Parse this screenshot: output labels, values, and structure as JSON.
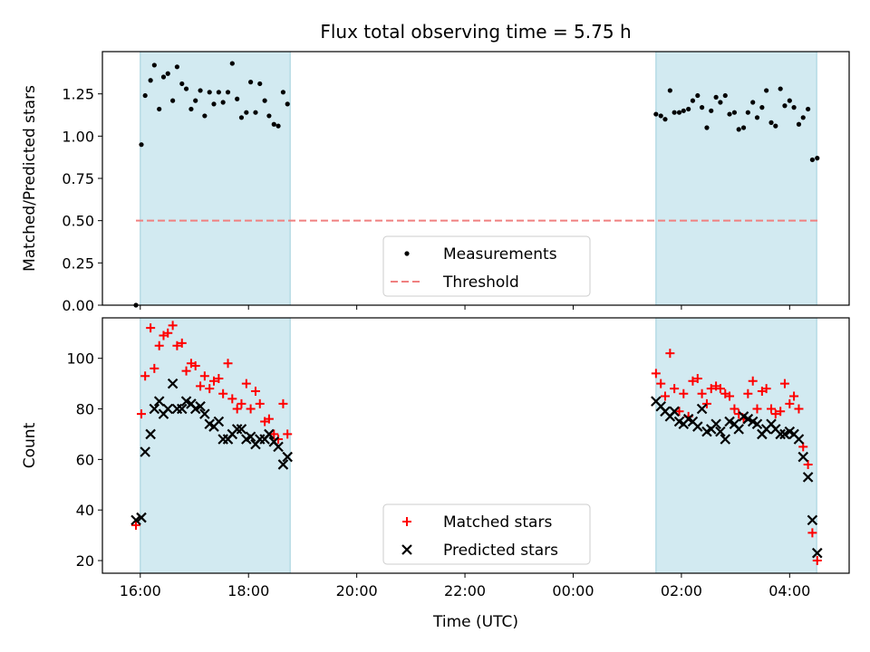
{
  "chart_data": {
    "title": "Flux total observing time = 5.75 h",
    "xlabel": "Time (UTC)",
    "x_unit": "hours since 16:00 UTC",
    "xlim": [
      -0.7,
      13.1
    ],
    "x_ticks": [
      {
        "x": 0,
        "label": "16:00"
      },
      {
        "x": 2,
        "label": "18:00"
      },
      {
        "x": 4,
        "label": "20:00"
      },
      {
        "x": 6,
        "label": "22:00"
      },
      {
        "x": 8,
        "label": "00:00"
      },
      {
        "x": 10,
        "label": "02:00"
      },
      {
        "x": 12,
        "label": "04:00"
      }
    ],
    "shaded_intervals": [
      [
        0.0,
        2.77
      ],
      [
        9.53,
        12.5
      ]
    ],
    "shade_color": "#add8e6",
    "panels": [
      {
        "type": "scatter",
        "ylabel": "Matched/Predicted stars",
        "ylim": [
          0,
          1.5
        ],
        "y_ticks": [
          {
            "y": 0,
            "label": "0.00"
          },
          {
            "y": 0.25,
            "label": "0.25"
          },
          {
            "y": 0.5,
            "label": "0.50"
          },
          {
            "y": 0.75,
            "label": "0.75"
          },
          {
            "y": 1.0,
            "label": "1.00"
          },
          {
            "y": 1.25,
            "label": "1.25"
          }
        ],
        "legend": {
          "location": "lower center",
          "entries": [
            "Measurements",
            "Threshold"
          ]
        },
        "threshold": {
          "name": "Threshold",
          "y": 0.5,
          "x_range": [
            -0.08,
            12.52
          ],
          "color": "#f08080",
          "style": "dashed"
        },
        "series": [
          {
            "name": "Measurements",
            "marker": "dot",
            "color": "#000000",
            "x": [
              -0.08,
              0.02,
              0.09,
              0.19,
              0.26,
              0.35,
              0.43,
              0.51,
              0.6,
              0.68,
              0.77,
              0.85,
              0.94,
              1.02,
              1.11,
              1.19,
              1.28,
              1.36,
              1.45,
              1.53,
              1.62,
              1.7,
              1.79,
              1.87,
              1.96,
              2.04,
              2.13,
              2.21,
              2.3,
              2.38,
              2.47,
              2.55,
              2.64,
              2.72,
              9.53,
              9.62,
              9.7,
              9.79,
              9.87,
              9.96,
              10.04,
              10.13,
              10.21,
              10.3,
              10.38,
              10.47,
              10.55,
              10.64,
              10.72,
              10.81,
              10.89,
              10.98,
              11.06,
              11.15,
              11.23,
              11.32,
              11.4,
              11.49,
              11.57,
              11.66,
              11.74,
              11.83,
              11.91,
              12.0,
              12.08,
              12.17,
              12.25,
              12.34,
              12.42,
              12.51
            ],
            "y": [
              0.0,
              0.95,
              1.24,
              1.33,
              1.42,
              1.16,
              1.35,
              1.37,
              1.21,
              1.41,
              1.31,
              1.28,
              1.16,
              1.21,
              1.27,
              1.12,
              1.26,
              1.19,
              1.26,
              1.2,
              1.26,
              1.43,
              1.22,
              1.11,
              1.14,
              1.32,
              1.14,
              1.31,
              1.21,
              1.12,
              1.07,
              1.06,
              1.26,
              1.19,
              1.13,
              1.12,
              1.1,
              1.27,
              1.14,
              1.14,
              1.15,
              1.16,
              1.21,
              1.24,
              1.17,
              1.05,
              1.15,
              1.23,
              1.2,
              1.24,
              1.13,
              1.14,
              1.04,
              1.05,
              1.14,
              1.2,
              1.11,
              1.17,
              1.27,
              1.08,
              1.06,
              1.28,
              1.18,
              1.21,
              1.17,
              1.07,
              1.11,
              1.16,
              0.86,
              0.87
            ]
          }
        ]
      },
      {
        "type": "scatter",
        "ylabel": "Count",
        "ylim": [
          15,
          116
        ],
        "y_ticks": [
          {
            "y": 20,
            "label": "20"
          },
          {
            "y": 40,
            "label": "40"
          },
          {
            "y": 60,
            "label": "60"
          },
          {
            "y": 80,
            "label": "80"
          },
          {
            "y": 100,
            "label": "100"
          }
        ],
        "legend": {
          "location": "lower center",
          "entries": [
            "Matched stars",
            "Predicted stars"
          ]
        },
        "series": [
          {
            "name": "Matched stars",
            "marker": "plus",
            "color": "#ff0000",
            "x": [
              -0.08,
              0.02,
              0.09,
              0.19,
              0.26,
              0.35,
              0.43,
              0.51,
              0.6,
              0.68,
              0.77,
              0.85,
              0.94,
              1.02,
              1.11,
              1.19,
              1.28,
              1.36,
              1.45,
              1.53,
              1.62,
              1.7,
              1.79,
              1.87,
              1.96,
              2.04,
              2.13,
              2.21,
              2.3,
              2.38,
              2.47,
              2.55,
              2.64,
              2.72,
              9.53,
              9.62,
              9.7,
              9.79,
              9.87,
              9.96,
              10.04,
              10.13,
              10.21,
              10.3,
              10.38,
              10.47,
              10.55,
              10.64,
              10.72,
              10.81,
              10.89,
              10.98,
              11.06,
              11.15,
              11.23,
              11.32,
              11.4,
              11.49,
              11.57,
              11.66,
              11.74,
              11.83,
              11.91,
              12.0,
              12.08,
              12.17,
              12.25,
              12.34,
              12.42,
              12.51
            ],
            "y": [
              34,
              78,
              93,
              112,
              96,
              105,
              109,
              110,
              113,
              105,
              106,
              95,
              98,
              97,
              89,
              93,
              88,
              91,
              92,
              86,
              98,
              84,
              80,
              82,
              90,
              80,
              87,
              82,
              75,
              76,
              70,
              68,
              82,
              70,
              94,
              90,
              85,
              102,
              88,
              79,
              86,
              77,
              91,
              92,
              86,
              82,
              88,
              89,
              88,
              86,
              85,
              80,
              78,
              76,
              86,
              91,
              80,
              87,
              88,
              80,
              78,
              79,
              90,
              82,
              85,
              80,
              65,
              58,
              31,
              20
            ]
          },
          {
            "name": "Predicted stars",
            "marker": "x",
            "color": "#000000",
            "x": [
              -0.08,
              0.02,
              0.09,
              0.19,
              0.26,
              0.35,
              0.43,
              0.51,
              0.6,
              0.68,
              0.77,
              0.85,
              0.94,
              1.02,
              1.11,
              1.19,
              1.28,
              1.36,
              1.45,
              1.53,
              1.62,
              1.7,
              1.79,
              1.87,
              1.96,
              2.04,
              2.13,
              2.21,
              2.3,
              2.38,
              2.47,
              2.55,
              2.64,
              2.72,
              9.53,
              9.62,
              9.7,
              9.79,
              9.87,
              9.96,
              10.04,
              10.13,
              10.21,
              10.3,
              10.38,
              10.47,
              10.55,
              10.64,
              10.72,
              10.81,
              10.89,
              10.98,
              11.06,
              11.15,
              11.23,
              11.32,
              11.4,
              11.49,
              11.57,
              11.66,
              11.74,
              11.83,
              11.91,
              12.0,
              12.08,
              12.17,
              12.25,
              12.34,
              12.42,
              12.51
            ],
            "y": [
              36,
              37,
              63,
              70,
              80,
              83,
              78,
              80,
              90,
              80,
              80,
              83,
              82,
              80,
              81,
              78,
              74,
              73,
              75,
              68,
              68,
              70,
              72,
              72,
              68,
              69,
              66,
              68,
              68,
              70,
              67,
              65,
              58,
              61,
              83,
              81,
              79,
              77,
              79,
              75,
              74,
              76,
              75,
              73,
              80,
              71,
              72,
              74,
              71,
              68,
              75,
              74,
              72,
              77,
              76,
              75,
              74,
              70,
              72,
              74,
              72,
              70,
              70,
              71,
              70,
              68,
              61,
              53,
              36,
              23
            ]
          }
        ]
      }
    ]
  }
}
